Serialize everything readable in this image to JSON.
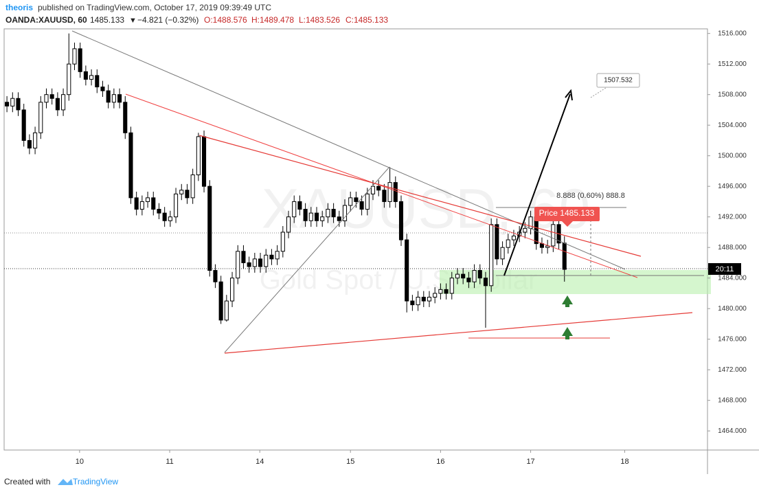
{
  "header": {
    "author": "theoris",
    "published": "published on TradingView.com, October 17, 2019 09:39:49 UTC",
    "symbol": "OANDA:XAUUSD, 60",
    "last": "1485.133",
    "change": "−4.821 (−0.32%)",
    "o": "O:1488.576",
    "h": "H:1489.478",
    "l": "L:1483.526",
    "c": "C:1485.133"
  },
  "footer": {
    "created": "Created with",
    "brand": "TradingView"
  },
  "annotations": {
    "target": "1507.532",
    "measure": "8.888 (0.60%) 888.8",
    "price": "Price 1485.133",
    "countdown": "20:11"
  },
  "chart_data": {
    "type": "candlestick",
    "watermark": "XAUUSD, 60",
    "watermark_sub": "Gold Spot / U.S. Dollar",
    "bull_color": "#ffffff",
    "bear_color": "#000000",
    "series": {
      "open": [
        1507,
        1506.5,
        1507.5,
        1506,
        1502,
        1501,
        1503,
        1507,
        1508,
        1507.5,
        1506,
        1508,
        1512,
        1514,
        1511,
        1510,
        1510.5,
        1509,
        1508.5,
        1507,
        1508,
        1507,
        1503,
        1494.5,
        1493,
        1494,
        1494.5,
        1493,
        1492.5,
        1491.5,
        1492,
        1495,
        1495.5,
        1494.5,
        1497.5,
        1502.5,
        1496,
        1485,
        1483.5,
        1478.5,
        1481,
        1484,
        1487.5,
        1486,
        1485.5,
        1486.5,
        1485.5,
        1487,
        1486.5,
        1487.5,
        1490,
        1492,
        1494,
        1493,
        1491.5,
        1492.5,
        1491.5,
        1492,
        1493,
        1492,
        1491.5,
        1493.5,
        1494.5,
        1494,
        1493,
        1495,
        1496,
        1495.5,
        1494,
        1496.5,
        1494,
        1489,
        1481,
        1480.5,
        1481.5,
        1481,
        1481.5,
        1482,
        1482.5,
        1482,
        1484,
        1484.5,
        1484,
        1483.5,
        1485,
        1484,
        1483,
        1491,
        1486.5,
        1488,
        1489,
        1489.5,
        1490,
        1490.5,
        1492,
        1488.5,
        1488,
        1488.2,
        1491,
        1488.576
      ],
      "high": [
        1507.8,
        1508.3,
        1508.3,
        1506.8,
        1502.8,
        1503.8,
        1507.8,
        1508.8,
        1508.8,
        1508.3,
        1508.8,
        1516,
        1514.8,
        1514.8,
        1511.8,
        1511.3,
        1511.3,
        1509.8,
        1509.3,
        1508.8,
        1508.8,
        1507.8,
        1503.8,
        1495.3,
        1494.8,
        1495.3,
        1495.3,
        1493.8,
        1493.3,
        1492.8,
        1495.8,
        1496.3,
        1496.3,
        1498.3,
        1503,
        1503.3,
        1496.8,
        1485.8,
        1484.3,
        1481.8,
        1484.8,
        1488.3,
        1488.3,
        1486.8,
        1487.3,
        1487.3,
        1487.8,
        1487.8,
        1488.3,
        1490.8,
        1492.8,
        1494.8,
        1494.8,
        1493.8,
        1493.3,
        1493.3,
        1492.8,
        1493.8,
        1493.8,
        1492.8,
        1494.3,
        1495.3,
        1495.3,
        1494.8,
        1495.8,
        1496.8,
        1496.8,
        1496.3,
        1498.5,
        1497.3,
        1494.8,
        1489.8,
        1481.8,
        1482.3,
        1482.3,
        1482.3,
        1482.8,
        1483.3,
        1483.3,
        1484.8,
        1485.3,
        1485.3,
        1484.8,
        1485.8,
        1485.8,
        1484.8,
        1491.8,
        1491.8,
        1488.8,
        1489.8,
        1490.3,
        1490.8,
        1491.3,
        1492.8,
        1492.8,
        1489.3,
        1489,
        1491.8,
        1491.8,
        1489.478
      ],
      "low": [
        1505.7,
        1505.7,
        1505.2,
        1501.2,
        1500.2,
        1500.2,
        1502.2,
        1506.2,
        1506.7,
        1505.2,
        1505.2,
        1507.2,
        1511.2,
        1510.2,
        1509.2,
        1509.2,
        1508.2,
        1507.7,
        1506.2,
        1506.2,
        1506.2,
        1502.2,
        1493.7,
        1492.2,
        1492.2,
        1493.2,
        1492.2,
        1491.7,
        1490.7,
        1490.7,
        1491.2,
        1494.2,
        1493.7,
        1493.7,
        1496.7,
        1495.2,
        1484.2,
        1482.7,
        1478,
        1478.3,
        1480.2,
        1483.2,
        1485.2,
        1484.7,
        1484.7,
        1484.7,
        1484.7,
        1485.7,
        1485.7,
        1486.7,
        1489.2,
        1491.2,
        1492.2,
        1490.7,
        1490.7,
        1490.7,
        1490.7,
        1491.2,
        1491.2,
        1490.7,
        1490.7,
        1492.7,
        1493.2,
        1492.2,
        1492.2,
        1494.2,
        1494.7,
        1493.2,
        1493.2,
        1493.2,
        1488.2,
        1479.5,
        1479.7,
        1479.7,
        1480.2,
        1480.2,
        1480.7,
        1481.2,
        1481.2,
        1481.2,
        1483.2,
        1483.2,
        1482.7,
        1482.7,
        1483.2,
        1477.5,
        1482.2,
        1485.7,
        1485.7,
        1487.2,
        1488.2,
        1488.7,
        1489.2,
        1489.7,
        1487.7,
        1487.2,
        1487.2,
        1487.4,
        1487.776,
        1483.526
      ],
      "close": [
        1506.5,
        1507.5,
        1506,
        1502,
        1501,
        1503,
        1507,
        1508,
        1507.5,
        1506,
        1508,
        1512,
        1514,
        1511,
        1510,
        1510.5,
        1509,
        1508.5,
        1507,
        1508,
        1507,
        1503,
        1494.5,
        1493,
        1494,
        1494.5,
        1493,
        1492.5,
        1491.5,
        1492,
        1495,
        1495.5,
        1494.5,
        1497.5,
        1502.5,
        1496,
        1485,
        1483.5,
        1478.5,
        1481,
        1484,
        1487.5,
        1486,
        1485.5,
        1486.5,
        1485.5,
        1487,
        1486.5,
        1487.5,
        1490,
        1492,
        1494,
        1493,
        1491.5,
        1492.5,
        1491.5,
        1492,
        1493,
        1492,
        1491.5,
        1493.5,
        1494.5,
        1494,
        1493,
        1495,
        1496,
        1495.5,
        1494,
        1496.5,
        1494,
        1489,
        1481,
        1480.5,
        1481.5,
        1481,
        1481.5,
        1482,
        1482.5,
        1482,
        1484,
        1484.5,
        1484,
        1483.5,
        1485,
        1484,
        1483,
        1491,
        1486.5,
        1488,
        1489,
        1489.5,
        1490,
        1490.5,
        1492,
        1488.5,
        1488,
        1488.2,
        1491,
        1488.576,
        1485.133
      ]
    },
    "xlim": [
      -0.5,
      124.4
    ],
    "xticks": [
      {
        "value": 12.9,
        "label": "10"
      },
      {
        "value": 28.9,
        "label": "11"
      },
      {
        "value": 44.9,
        "label": "14"
      },
      {
        "value": 61,
        "label": "15"
      },
      {
        "value": 77,
        "label": "16"
      },
      {
        "value": 93,
        "label": "17"
      },
      {
        "value": 109.7,
        "label": "18"
      }
    ],
    "ylim": [
      1461.5,
      1516.6
    ],
    "yticks": [
      {
        "value": 1464,
        "label": "1464.000"
      },
      {
        "value": 1468,
        "label": "1468.000"
      },
      {
        "value": 1472,
        "label": "1472.000"
      },
      {
        "value": 1476,
        "label": "1476.000"
      },
      {
        "value": 1480,
        "label": "1480.000"
      },
      {
        "value": 1484,
        "label": "1484.000"
      },
      {
        "value": 1488,
        "label": "1488.000"
      },
      {
        "value": 1492,
        "label": "1492.000"
      },
      {
        "value": 1496,
        "label": "1496.000"
      },
      {
        "value": 1500,
        "label": "1500.000"
      },
      {
        "value": 1504,
        "label": "1504.000"
      },
      {
        "value": 1508,
        "label": "1508.000"
      },
      {
        "value": 1512,
        "label": "1512.000"
      },
      {
        "value": 1516,
        "label": "1516.000"
      }
    ],
    "grid": false
  }
}
